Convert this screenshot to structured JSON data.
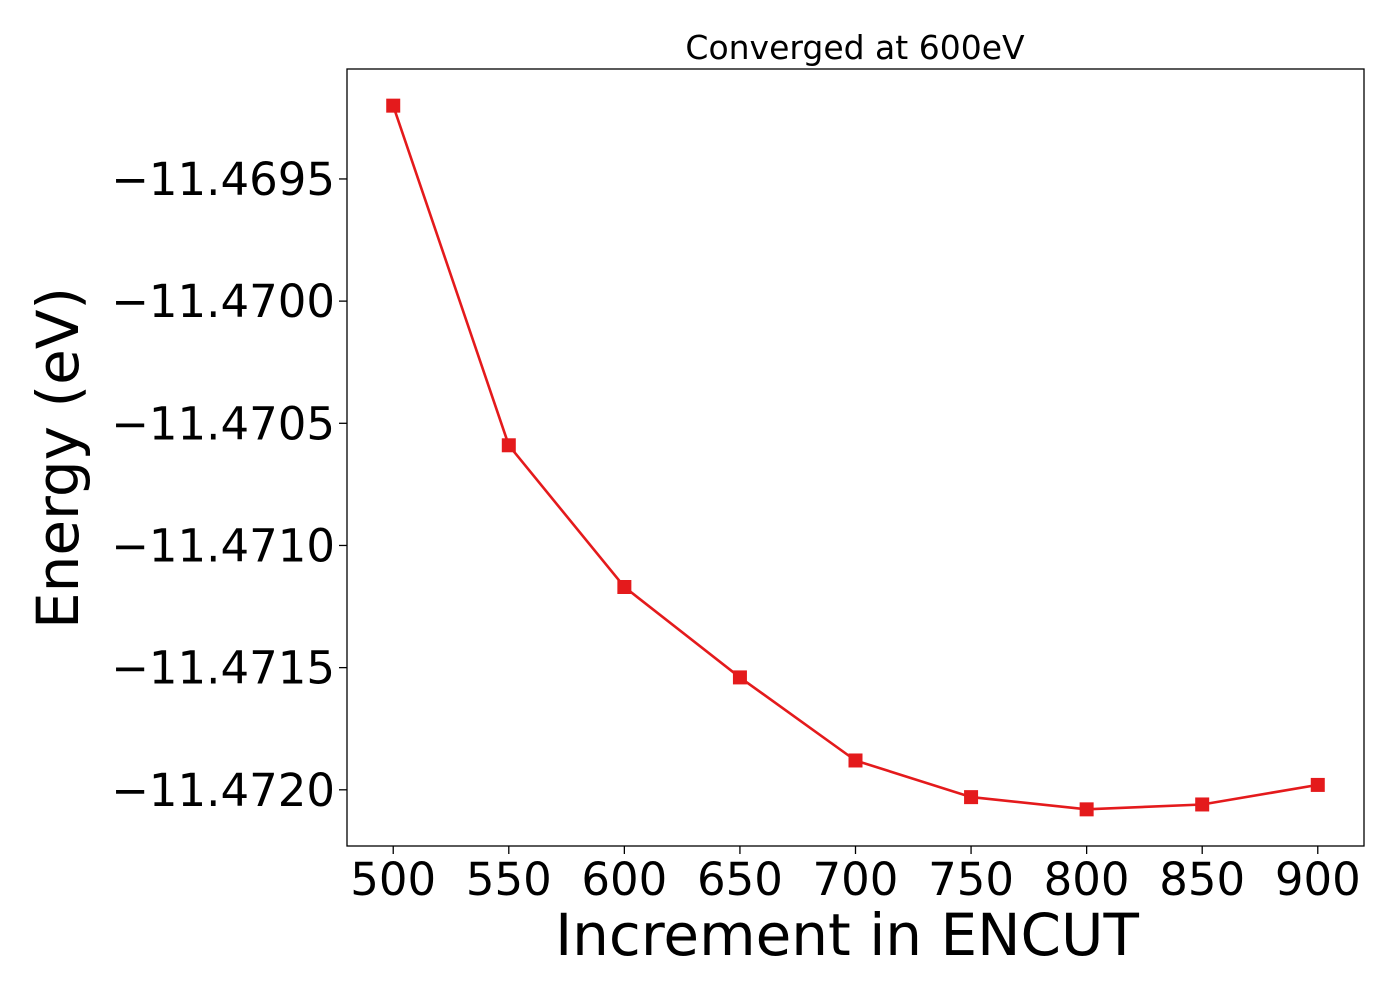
{
  "chart_data": {
    "type": "line",
    "title": "Converged at 600eV",
    "xlabel": "Increment in ENCUT",
    "ylabel": "Energy (eV)",
    "x": [
      500,
      550,
      600,
      650,
      700,
      750,
      800,
      850,
      900
    ],
    "series": [
      {
        "values": [
          -11.4692,
          -11.47059,
          -11.47117,
          -11.47154,
          -11.47188,
          -11.47203,
          -11.47208,
          -11.47206,
          -11.47198
        ],
        "color": "#e41a1c",
        "marker": "square"
      }
    ],
    "xticks": [
      500,
      550,
      600,
      650,
      700,
      750,
      800,
      850,
      900
    ],
    "xtick_labels": [
      "500",
      "550",
      "600",
      "650",
      "700",
      "750",
      "800",
      "850",
      "900"
    ],
    "yticks": [
      -11.4695,
      -11.47,
      -11.4705,
      -11.471,
      -11.4715,
      -11.472
    ],
    "ytick_labels": [
      "−11.4695",
      "−11.4700",
      "−11.4705",
      "−11.4710",
      "−11.4715",
      "−11.4720"
    ],
    "xlim": [
      480,
      920
    ],
    "ylim": [
      -11.47223,
      -11.46905
    ],
    "grid": false,
    "legend": "none"
  }
}
